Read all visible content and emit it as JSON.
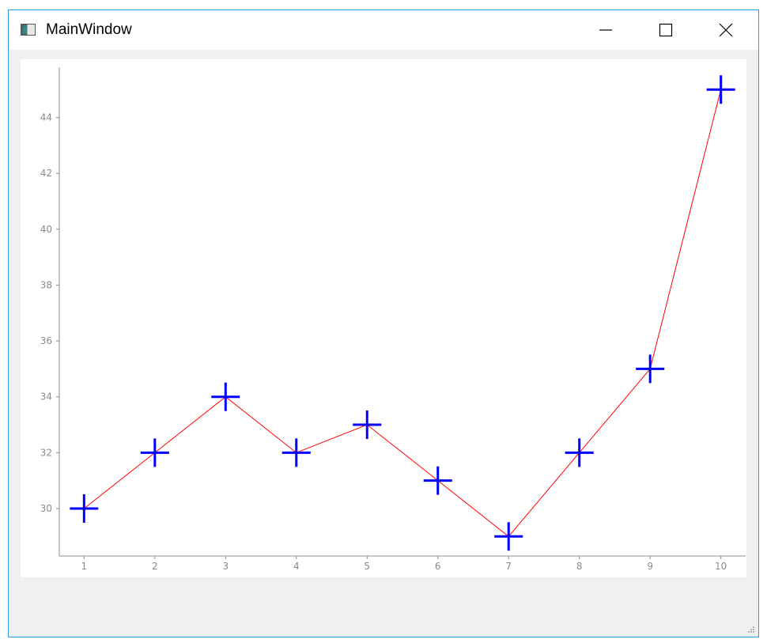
{
  "window": {
    "title": "MainWindow",
    "icons": {
      "app": "app-window-icon",
      "minimize": "minimize-icon",
      "maximize": "maximize-icon",
      "close": "close-icon",
      "grip": "resize-grip-icon"
    }
  },
  "chart_data": {
    "type": "line",
    "title": "",
    "xlabel": "",
    "ylabel": "",
    "x": [
      1,
      2,
      3,
      4,
      5,
      6,
      7,
      8,
      9,
      10
    ],
    "series": [
      {
        "values": [
          30,
          32,
          34,
          32,
          33,
          31,
          29,
          32,
          35,
          45
        ],
        "line_color": "#ff0000",
        "marker": "plus",
        "marker_color": "#0000ff"
      }
    ],
    "xlim": [
      0.65,
      10.35
    ],
    "ylim": [
      28.3,
      45.8
    ],
    "x_ticks": [
      1,
      2,
      3,
      4,
      5,
      6,
      7,
      8,
      9,
      10
    ],
    "y_ticks": [
      30,
      32,
      34,
      36,
      38,
      40,
      42,
      44
    ],
    "grid": false,
    "legend": "none"
  }
}
